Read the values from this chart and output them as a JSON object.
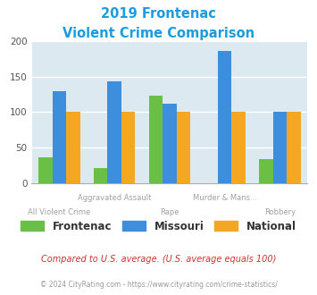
{
  "title_line1": "2019 Frontenac",
  "title_line2": "Violent Crime Comparison",
  "title_color": "#1a9cde",
  "categories": [
    "All Violent Crime",
    "Aggravated Assault",
    "Rape",
    "Murder & Mans...",
    "Robbery"
  ],
  "frontenac": [
    36,
    21,
    123,
    0,
    33
  ],
  "missouri": [
    130,
    143,
    112,
    186,
    100
  ],
  "national": [
    100,
    100,
    100,
    100,
    100
  ],
  "color_frontenac": "#6abf45",
  "color_missouri": "#3d8fde",
  "color_national": "#f5a623",
  "ylim": [
    0,
    200
  ],
  "yticks": [
    0,
    50,
    100,
    150,
    200
  ],
  "background_color": "#dce9f0",
  "footnote1": "Compared to U.S. average. (U.S. average equals 100)",
  "footnote2": "© 2024 CityRating.com - https://www.cityrating.com/crime-statistics/",
  "footnote1_color": "#cc3333",
  "footnote2_color": "#999999",
  "url_color": "#3d8fde"
}
